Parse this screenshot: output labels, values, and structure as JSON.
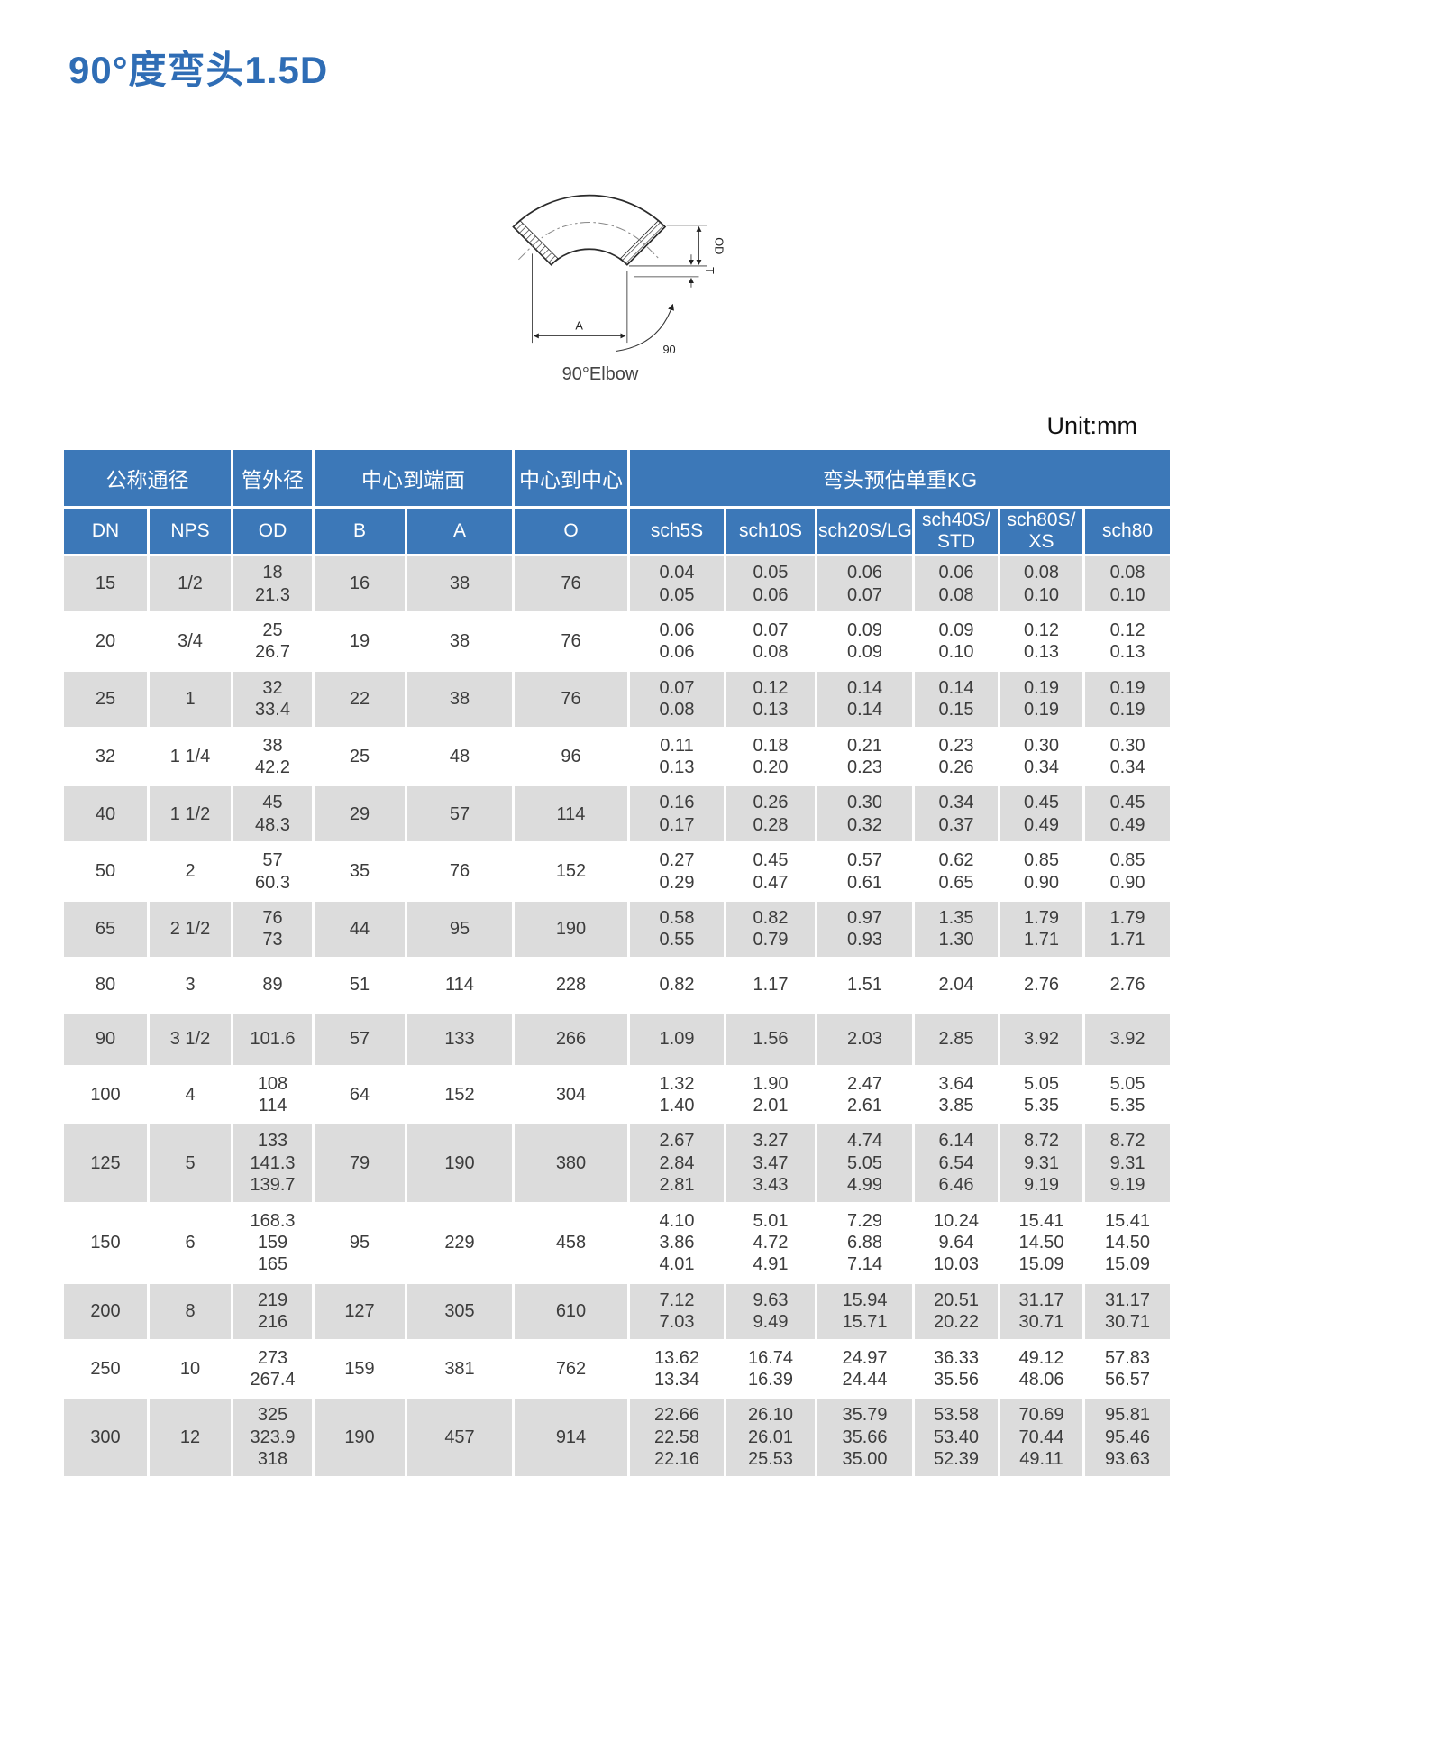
{
  "page": {
    "title": "90°度弯头1.5D",
    "unit_label": "Unit:mm",
    "diagram_caption": "90°Elbow",
    "diagram_labels": {
      "od": "OD",
      "t": "T",
      "a": "A",
      "angle": "90"
    }
  },
  "colors": {
    "header_bg": "#3c78b8",
    "row_alt_bg": "#dcdcdc",
    "title": "#2f6db5"
  },
  "table": {
    "group_headers": [
      {
        "label": "公称通径",
        "colspan": 2
      },
      {
        "label": "管外径",
        "colspan": 1
      },
      {
        "label": "中心到端面",
        "colspan": 2
      },
      {
        "label": "中心到中心",
        "colspan": 1
      },
      {
        "label": "弯头预估单重KG",
        "colspan": 6
      }
    ],
    "columns": [
      "DN",
      "NPS",
      "OD",
      "B",
      "A",
      "O",
      "sch5S",
      "sch10S",
      "sch20S/LG",
      "sch40S/\nSTD",
      "sch80S/\nXS",
      "sch80"
    ],
    "rows": [
      [
        "15",
        "1/2",
        "18\n21.3",
        "16",
        "38",
        "76",
        "0.04\n0.05",
        "0.05\n0.06",
        "0.06\n0.07",
        "0.06\n0.08",
        "0.08\n0.10",
        "0.08\n0.10"
      ],
      [
        "20",
        "3/4",
        "25\n26.7",
        "19",
        "38",
        "76",
        "0.06\n0.06",
        "0.07\n0.08",
        "0.09\n0.09",
        "0.09\n0.10",
        "0.12\n0.13",
        "0.12\n0.13"
      ],
      [
        "25",
        "1",
        "32\n33.4",
        "22",
        "38",
        "76",
        "0.07\n0.08",
        "0.12\n0.13",
        "0.14\n0.14",
        "0.14\n0.15",
        "0.19\n0.19",
        "0.19\n0.19"
      ],
      [
        "32",
        "1 1/4",
        "38\n42.2",
        "25",
        "48",
        "96",
        "0.11\n0.13",
        "0.18\n0.20",
        "0.21\n0.23",
        "0.23\n0.26",
        "0.30\n0.34",
        "0.30\n0.34"
      ],
      [
        "40",
        "1 1/2",
        "45\n48.3",
        "29",
        "57",
        "114",
        "0.16\n0.17",
        "0.26\n0.28",
        "0.30\n0.32",
        "0.34\n0.37",
        "0.45\n0.49",
        "0.45\n0.49"
      ],
      [
        "50",
        "2",
        "57\n60.3",
        "35",
        "76",
        "152",
        "0.27\n0.29",
        "0.45\n0.47",
        "0.57\n0.61",
        "0.62\n0.65",
        "0.85\n0.90",
        "0.85\n0.90"
      ],
      [
        "65",
        "2 1/2",
        "76\n73",
        "44",
        "95",
        "190",
        "0.58\n0.55",
        "0.82\n0.79",
        "0.97\n0.93",
        "1.35\n1.30",
        "1.79\n1.71",
        "1.79\n1.71"
      ],
      [
        "80",
        "3",
        "89",
        "51",
        "114",
        "228",
        "0.82",
        "1.17",
        "1.51",
        "2.04",
        "2.76",
        "2.76"
      ],
      [
        "90",
        "3 1/2",
        "101.6",
        "57",
        "133",
        "266",
        "1.09",
        "1.56",
        "2.03",
        "2.85",
        "3.92",
        "3.92"
      ],
      [
        "100",
        "4",
        "108\n114",
        "64",
        "152",
        "304",
        "1.32\n1.40",
        "1.90\n2.01",
        "2.47\n2.61",
        "3.64\n3.85",
        "5.05\n5.35",
        "5.05\n5.35"
      ],
      [
        "125",
        "5",
        "133\n141.3\n139.7",
        "79",
        "190",
        "380",
        "2.67\n2.84\n2.81",
        "3.27\n3.47\n3.43",
        "4.74\n5.05\n4.99",
        "6.14\n6.54\n6.46",
        "8.72\n9.31\n9.19",
        "8.72\n9.31\n9.19"
      ],
      [
        "150",
        "6",
        "168.3\n159\n165",
        "95",
        "229",
        "458",
        "4.10\n3.86\n4.01",
        "5.01\n4.72\n4.91",
        "7.29\n6.88\n7.14",
        "10.24\n9.64\n10.03",
        "15.41\n14.50\n15.09",
        "15.41\n14.50\n15.09"
      ],
      [
        "200",
        "8",
        "219\n216",
        "127",
        "305",
        "610",
        "7.12\n7.03",
        "9.63\n9.49",
        "15.94\n15.71",
        "20.51\n20.22",
        "31.17\n30.71",
        "31.17\n30.71"
      ],
      [
        "250",
        "10",
        "273\n267.4",
        "159",
        "381",
        "762",
        "13.62\n13.34",
        "16.74\n16.39",
        "24.97\n24.44",
        "36.33\n35.56",
        "49.12\n48.06",
        "57.83\n56.57"
      ],
      [
        "300",
        "12",
        "325\n323.9\n318",
        "190",
        "457",
        "914",
        "22.66\n22.58\n22.16",
        "26.10\n26.01\n25.53",
        "35.79\n35.66\n35.00",
        "53.58\n53.40\n52.39",
        "70.69\n70.44\n49.11",
        "95.81\n95.46\n93.63"
      ]
    ]
  }
}
